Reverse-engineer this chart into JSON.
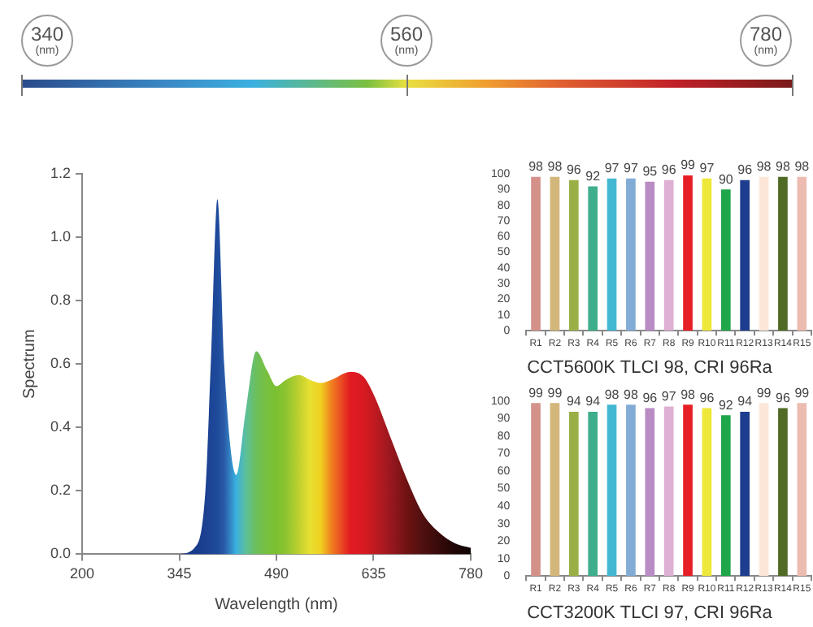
{
  "chart_data": [
    {
      "type": "other",
      "annotations": [
        "340 (nm)",
        "560 (nm)",
        "780 (nm)"
      ]
    },
    {
      "type": "area",
      "xlabel": "Wavelength (nm)",
      "ylabel": "Spectrum",
      "xlim": [
        200,
        780
      ],
      "xticks": [
        200,
        345,
        490,
        635,
        780
      ],
      "ylim": [
        0,
        1.2
      ],
      "yticks": [
        {
          "value": 0,
          "label": "0.0"
        },
        {
          "value": 0.2,
          "label": "0.2"
        },
        {
          "value": 0.4,
          "label": "0.4"
        },
        {
          "value": 0.6,
          "label": "0.6"
        },
        {
          "value": 0.8,
          "label": "0.8"
        },
        {
          "value": 1.0,
          "label": "1.0"
        },
        {
          "value": 1.2,
          "label": "1.2"
        }
      ],
      "grid": false,
      "x": [
        344,
        368,
        384,
        392,
        402,
        412,
        430,
        444,
        460,
        476,
        490,
        504,
        524,
        540,
        556,
        572,
        600,
        620,
        636,
        660,
        684,
        708,
        732,
        756,
        780
      ],
      "values": [
        0,
        0.02,
        0.2,
        0.6,
        1.12,
        0.6,
        0.25,
        0.45,
        0.64,
        0.58,
        0.53,
        0.55,
        0.565,
        0.55,
        0.54,
        0.55,
        0.575,
        0.56,
        0.5,
        0.37,
        0.24,
        0.13,
        0.07,
        0.035,
        0.02
      ],
      "colors": [
        "#1a3580",
        "#1a3a8c",
        "#1c4090",
        "#1d4596",
        "#1e4a9c",
        "#2a5aa8",
        "#3ab0e0",
        "#5cbf9a",
        "#6cbf5a",
        "#78c040",
        "#7cc030",
        "#8cc430",
        "#c0d030",
        "#e8e030",
        "#f0d020",
        "#f08020",
        "#e31b23",
        "#d81a22",
        "#c01a20",
        "#9a1820",
        "#701212",
        "#501010",
        "#380a0a",
        "#200606",
        "#100404"
      ]
    },
    {
      "type": "bar",
      "title": "CCT5600K TLCI 98, CRI 96Ra",
      "categories": [
        "R1",
        "R2",
        "R3",
        "R4",
        "R5",
        "R6",
        "R7",
        "R8",
        "R9",
        "R10",
        "R11",
        "R12",
        "R13",
        "R14",
        "R15"
      ],
      "values": [
        98,
        98,
        96,
        92,
        97,
        97,
        95,
        96,
        99,
        97,
        90,
        96,
        98,
        98,
        98
      ],
      "colors": [
        "#d4918a",
        "#d2b67a",
        "#9ab046",
        "#3fae8c",
        "#44b8d2",
        "#82acd6",
        "#b98cc4",
        "#ddb0d4",
        "#e61e25",
        "#eee83a",
        "#1fa64a",
        "#1d3d8e",
        "#fbe6d8",
        "#4f6b25",
        "#ecbcb0"
      ],
      "ylim": [
        0,
        100
      ],
      "yticks": [
        0,
        10,
        20,
        30,
        40,
        50,
        60,
        70,
        80,
        90,
        100
      ],
      "data_labels": true
    },
    {
      "type": "bar",
      "title": "CCT3200K TLCI 97, CRI 96Ra",
      "categories": [
        "R1",
        "R2",
        "R3",
        "R4",
        "R5",
        "R6",
        "R7",
        "R8",
        "R9",
        "R10",
        "R11",
        "R12",
        "R13",
        "R14",
        "R15"
      ],
      "values": [
        99,
        99,
        94,
        94,
        98,
        98,
        96,
        97,
        98,
        96,
        92,
        94,
        99,
        96,
        99
      ],
      "colors": [
        "#d4918a",
        "#d2b67a",
        "#9ab046",
        "#3fae8c",
        "#44b8d2",
        "#82acd6",
        "#b98cc4",
        "#ddb0d4",
        "#e61e25",
        "#eee83a",
        "#1fa64a",
        "#1d3d8e",
        "#fbe6d8",
        "#4f6b25",
        "#ecbcb0"
      ],
      "ylim": [
        0,
        100
      ],
      "yticks": [
        0,
        10,
        20,
        30,
        40,
        50,
        60,
        70,
        80,
        90,
        100
      ],
      "data_labels": true
    }
  ]
}
